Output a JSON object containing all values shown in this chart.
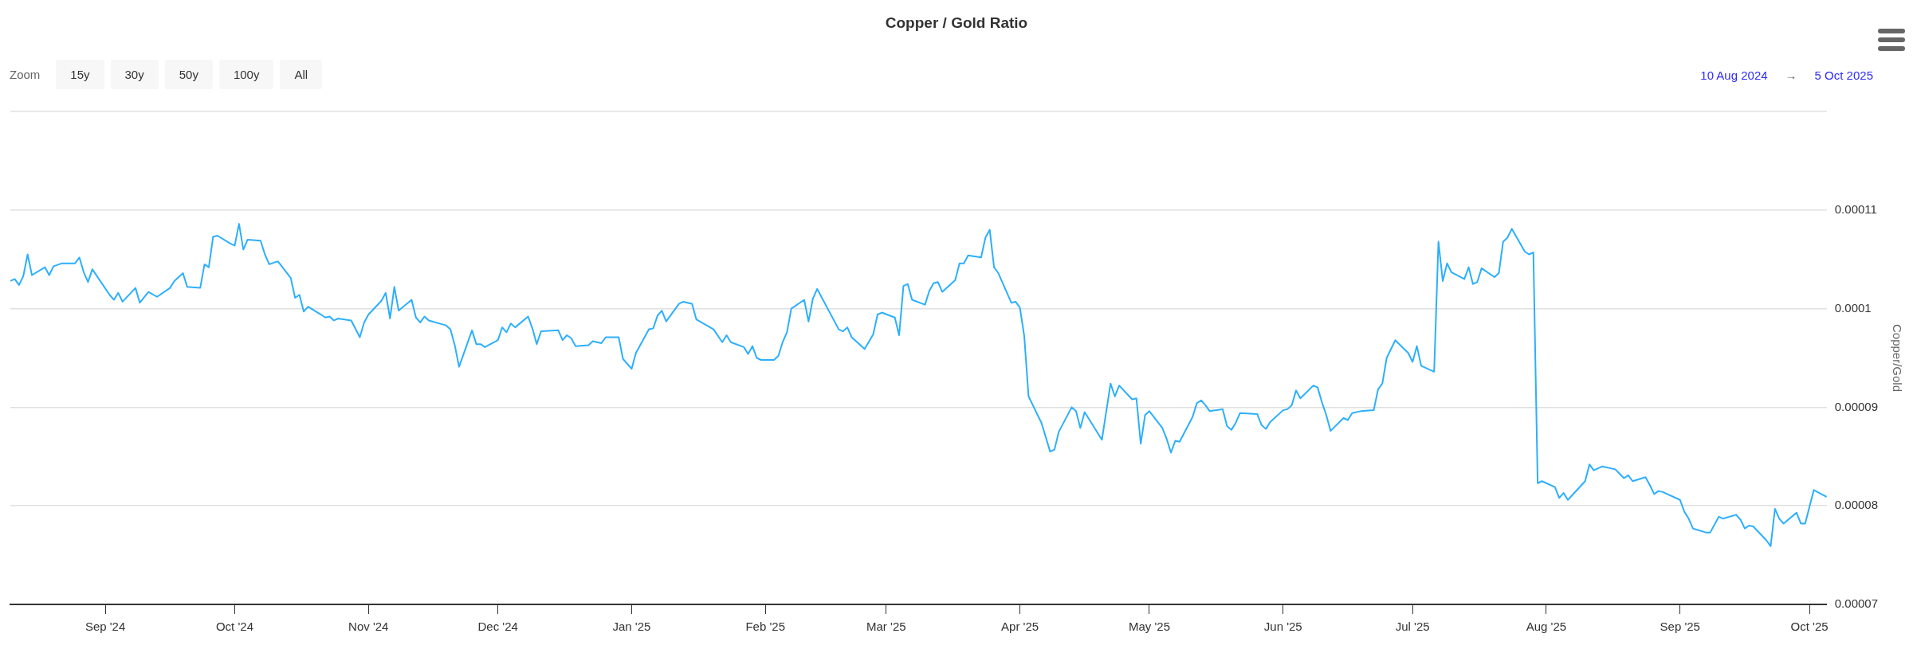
{
  "chart_data": {
    "type": "line",
    "title": "Copper / Gold Ratio",
    "ylabel": "Copper/Gold",
    "annotations": [
      "Zoom",
      "15y",
      "30y",
      "50y",
      "100y",
      "All",
      "10 Aug 2024",
      "→",
      "5 Oct 2025"
    ],
    "xlim": [
      "2024-08-10",
      "2025-10-05"
    ],
    "xticks": [
      {
        "value": "2024-09-01",
        "label": "Sep '24"
      },
      {
        "value": "2024-10-01",
        "label": "Oct '24"
      },
      {
        "value": "2024-11-01",
        "label": "Nov '24"
      },
      {
        "value": "2024-12-01",
        "label": "Dec '24"
      },
      {
        "value": "2025-01-01",
        "label": "Jan '25"
      },
      {
        "value": "2025-02-01",
        "label": "Feb '25"
      },
      {
        "value": "2025-03-01",
        "label": "Mar '25"
      },
      {
        "value": "2025-04-01",
        "label": "Apr '25"
      },
      {
        "value": "2025-05-01",
        "label": "May '25"
      },
      {
        "value": "2025-06-01",
        "label": "Jun '25"
      },
      {
        "value": "2025-07-01",
        "label": "Jul '25"
      },
      {
        "value": "2025-08-01",
        "label": "Aug '25"
      },
      {
        "value": "2025-09-01",
        "label": "Sep '25"
      },
      {
        "value": "2025-10-01",
        "label": "Oct '25"
      }
    ],
    "ylim": [
      7e-05,
      0.00012
    ],
    "yticks": [
      {
        "value": 7e-05,
        "label": "0.00007"
      },
      {
        "value": 8e-05,
        "label": "0.00008"
      },
      {
        "value": 9e-05,
        "label": "0.00009"
      },
      {
        "value": 0.0001,
        "label": "0.0001"
      },
      {
        "value": 0.00011,
        "label": "0.00011"
      },
      {
        "value": 0.00012,
        "label": null
      }
    ],
    "grid": "y",
    "legend": false,
    "marker": "none",
    "line_style": "solid",
    "series": [
      {
        "color": "#2caffe",
        "x": [
          "2024-08-10",
          "2024-08-11",
          "2024-08-12",
          "2024-08-13",
          "2024-08-14",
          "2024-08-15",
          "2024-08-18",
          "2024-08-19",
          "2024-08-20",
          "2024-08-22",
          "2024-08-25",
          "2024-08-26",
          "2024-08-27",
          "2024-08-28",
          "2024-08-29",
          "2024-09-02",
          "2024-09-03",
          "2024-09-04",
          "2024-09-05",
          "2024-09-08",
          "2024-09-09",
          "2024-09-11",
          "2024-09-13",
          "2024-09-16",
          "2024-09-17",
          "2024-09-19",
          "2024-09-20",
          "2024-09-23",
          "2024-09-24",
          "2024-09-25",
          "2024-09-26",
          "2024-09-27",
          "2024-09-30",
          "2024-10-01",
          "2024-10-02",
          "2024-10-03",
          "2024-10-04",
          "2024-10-07",
          "2024-10-08",
          "2024-10-09",
          "2024-10-11",
          "2024-10-14",
          "2024-10-15",
          "2024-10-16",
          "2024-10-17",
          "2024-10-18",
          "2024-10-21",
          "2024-10-22",
          "2024-10-23",
          "2024-10-24",
          "2024-10-25",
          "2024-10-28",
          "2024-10-30",
          "2024-10-31",
          "2024-11-01",
          "2024-11-04",
          "2024-11-05",
          "2024-11-06",
          "2024-11-07",
          "2024-11-08",
          "2024-11-11",
          "2024-11-12",
          "2024-11-13",
          "2024-11-14",
          "2024-11-15",
          "2024-11-19",
          "2024-11-20",
          "2024-11-21",
          "2024-11-22",
          "2024-11-25",
          "2024-11-26",
          "2024-11-27",
          "2024-11-28",
          "2024-12-01",
          "2024-12-02",
          "2024-12-03",
          "2024-12-04",
          "2024-12-05",
          "2024-12-08",
          "2024-12-09",
          "2024-12-10",
          "2024-12-11",
          "2024-12-15",
          "2024-12-16",
          "2024-12-17",
          "2024-12-18",
          "2024-12-19",
          "2024-12-22",
          "2024-12-23",
          "2024-12-25",
          "2024-12-26",
          "2024-12-29",
          "2024-12-30",
          "2025-01-01",
          "2025-01-02",
          "2025-01-05",
          "2025-01-06",
          "2025-01-07",
          "2025-01-08",
          "2025-01-09",
          "2025-01-12",
          "2025-01-13",
          "2025-01-15",
          "2025-01-16",
          "2025-01-20",
          "2025-01-22",
          "2025-01-23",
          "2025-01-24",
          "2025-01-27",
          "2025-01-28",
          "2025-01-29",
          "2025-01-30",
          "2025-01-31",
          "2025-02-03",
          "2025-02-04",
          "2025-02-05",
          "2025-02-06",
          "2025-02-07",
          "2025-02-10",
          "2025-02-11",
          "2025-02-12",
          "2025-02-13",
          "2025-02-18",
          "2025-02-19",
          "2025-02-20",
          "2025-02-21",
          "2025-02-24",
          "2025-02-26",
          "2025-02-27",
          "2025-02-28",
          "2025-03-03",
          "2025-03-04",
          "2025-03-05",
          "2025-03-06",
          "2025-03-07",
          "2025-03-10",
          "2025-03-11",
          "2025-03-12",
          "2025-03-13",
          "2025-03-14",
          "2025-03-17",
          "2025-03-18",
          "2025-03-19",
          "2025-03-20",
          "2025-03-23",
          "2025-03-24",
          "2025-03-25",
          "2025-03-26",
          "2025-03-27",
          "2025-03-30",
          "2025-03-31",
          "2025-04-01",
          "2025-04-02",
          "2025-04-03",
          "2025-04-06",
          "2025-04-08",
          "2025-04-09",
          "2025-04-10",
          "2025-04-13",
          "2025-04-14",
          "2025-04-15",
          "2025-04-16",
          "2025-04-20",
          "2025-04-22",
          "2025-04-23",
          "2025-04-24",
          "2025-04-27",
          "2025-04-28",
          "2025-04-29",
          "2025-04-30",
          "2025-05-01",
          "2025-05-04",
          "2025-05-05",
          "2025-05-06",
          "2025-05-07",
          "2025-05-08",
          "2025-05-11",
          "2025-05-12",
          "2025-05-13",
          "2025-05-14",
          "2025-05-15",
          "2025-05-18",
          "2025-05-19",
          "2025-05-20",
          "2025-05-21",
          "2025-05-22",
          "2025-05-26",
          "2025-05-27",
          "2025-05-28",
          "2025-05-29",
          "2025-06-01",
          "2025-06-02",
          "2025-06-03",
          "2025-06-04",
          "2025-06-05",
          "2025-06-08",
          "2025-06-09",
          "2025-06-10",
          "2025-06-11",
          "2025-06-12",
          "2025-06-15",
          "2025-06-16",
          "2025-06-17",
          "2025-06-19",
          "2025-06-22",
          "2025-06-23",
          "2025-06-24",
          "2025-06-25",
          "2025-06-27",
          "2025-06-30",
          "2025-07-01",
          "2025-07-02",
          "2025-07-03",
          "2025-07-06",
          "2025-07-07",
          "2025-07-08",
          "2025-07-09",
          "2025-07-10",
          "2025-07-13",
          "2025-07-14",
          "2025-07-15",
          "2025-07-16",
          "2025-07-17",
          "2025-07-20",
          "2025-07-21",
          "2025-07-22",
          "2025-07-23",
          "2025-07-24",
          "2025-07-27",
          "2025-07-28",
          "2025-07-29",
          "2025-07-30",
          "2025-07-31",
          "2025-08-03",
          "2025-08-04",
          "2025-08-05",
          "2025-08-06",
          "2025-08-10",
          "2025-08-11",
          "2025-08-12",
          "2025-08-14",
          "2025-08-17",
          "2025-08-19",
          "2025-08-20",
          "2025-08-21",
          "2025-08-24",
          "2025-08-25",
          "2025-08-26",
          "2025-08-27",
          "2025-08-28",
          "2025-09-01",
          "2025-09-02",
          "2025-09-03",
          "2025-09-04",
          "2025-09-07",
          "2025-09-08",
          "2025-09-10",
          "2025-09-11",
          "2025-09-14",
          "2025-09-15",
          "2025-09-16",
          "2025-09-17",
          "2025-09-18",
          "2025-09-21",
          "2025-09-22",
          "2025-09-23",
          "2025-09-24",
          "2025-09-25",
          "2025-09-28",
          "2025-09-29",
          "2025-09-30",
          "2025-10-02",
          "2025-10-05"
        ],
        "values": [
          0.0001028,
          0.000103,
          0.0001024,
          0.0001033,
          0.0001055,
          0.0001034,
          0.0001042,
          0.0001034,
          0.0001043,
          0.0001046,
          0.0001046,
          0.0001052,
          0.0001037,
          0.0001027,
          0.000104,
          0.0001014,
          0.0001009,
          0.0001016,
          0.0001007,
          0.0001021,
          0.0001006,
          0.0001017,
          0.0001012,
          0.0001021,
          0.0001028,
          0.0001036,
          0.0001022,
          0.0001021,
          0.0001045,
          0.0001042,
          0.0001073,
          0.0001074,
          0.0001066,
          0.0001064,
          0.0001086,
          0.000106,
          0.000107,
          0.0001069,
          0.0001055,
          0.0001045,
          0.0001048,
          0.0001031,
          0.0001011,
          0.0001014,
          9.97e-05,
          0.0001002,
          9.94e-05,
          9.91e-05,
          9.92e-05,
          9.88e-05,
          9.9e-05,
          9.88e-05,
          9.71e-05,
          9.86e-05,
          9.94e-05,
          0.0001008,
          0.0001016,
          9.9e-05,
          0.0001022,
          9.98e-05,
          0.0001009,
          9.91e-05,
          9.86e-05,
          9.92e-05,
          9.88e-05,
          9.83e-05,
          9.79e-05,
          9.63e-05,
          9.41e-05,
          9.78e-05,
          9.64e-05,
          9.64e-05,
          9.61e-05,
          9.68e-05,
          9.81e-05,
          9.76e-05,
          9.85e-05,
          9.81e-05,
          9.92e-05,
          9.8e-05,
          9.64e-05,
          9.77e-05,
          9.78e-05,
          9.68e-05,
          9.73e-05,
          9.7e-05,
          9.62e-05,
          9.63e-05,
          9.67e-05,
          9.65e-05,
          9.71e-05,
          9.71e-05,
          9.49e-05,
          9.39e-05,
          9.55e-05,
          9.79e-05,
          9.8e-05,
          9.93e-05,
          9.98e-05,
          9.87e-05,
          0.0001005,
          0.0001007,
          0.0001005,
          9.89e-05,
          9.79e-05,
          9.66e-05,
          9.73e-05,
          9.66e-05,
          9.61e-05,
          9.54e-05,
          9.62e-05,
          9.5e-05,
          9.48e-05,
          9.48e-05,
          9.52e-05,
          9.66e-05,
          9.76e-05,
          0.0001,
          0.0001009,
          9.87e-05,
          0.000101,
          0.000102,
          9.79e-05,
          9.77e-05,
          9.81e-05,
          9.71e-05,
          9.59e-05,
          9.74e-05,
          9.94e-05,
          9.96e-05,
          9.91e-05,
          9.73e-05,
          0.0001023,
          0.0001025,
          0.0001009,
          0.0001004,
          0.0001018,
          0.0001026,
          0.0001027,
          0.0001017,
          0.0001029,
          0.0001046,
          0.0001046,
          0.0001054,
          0.0001052,
          0.0001072,
          0.000108,
          0.0001042,
          0.0001036,
          0.0001006,
          0.0001007,
          0.0001001,
          9.72e-05,
          9.11e-05,
          8.84e-05,
          8.55e-05,
          8.57e-05,
          8.75e-05,
          9e-05,
          8.96e-05,
          8.79e-05,
          8.95e-05,
          8.67e-05,
          9.24e-05,
          9.11e-05,
          9.22e-05,
          9.08e-05,
          9.09e-05,
          8.63e-05,
          8.92e-05,
          8.96e-05,
          8.79e-05,
          8.68e-05,
          8.54e-05,
          8.66e-05,
          8.65e-05,
          8.9e-05,
          9.04e-05,
          9.07e-05,
          9.02e-05,
          8.96e-05,
          8.98e-05,
          8.81e-05,
          8.77e-05,
          8.84e-05,
          8.94e-05,
          8.93e-05,
          8.82e-05,
          8.78e-05,
          8.85e-05,
          8.97e-05,
          8.98e-05,
          9.02e-05,
          9.17e-05,
          9.09e-05,
          9.22e-05,
          9.2e-05,
          9.05e-05,
          8.92e-05,
          8.76e-05,
          8.89e-05,
          8.87e-05,
          8.94e-05,
          8.96e-05,
          8.97e-05,
          9.18e-05,
          9.24e-05,
          9.5e-05,
          9.68e-05,
          9.55e-05,
          9.46e-05,
          9.62e-05,
          9.42e-05,
          9.36e-05,
          0.0001068,
          0.0001028,
          0.0001046,
          0.0001037,
          0.000103,
          0.0001042,
          0.0001025,
          0.0001027,
          0.0001041,
          0.0001032,
          0.0001036,
          0.0001068,
          0.0001072,
          0.0001081,
          0.0001058,
          0.0001055,
          0.0001057,
          8.23e-05,
          8.25e-05,
          8.19e-05,
          8.08e-05,
          8.13e-05,
          8.06e-05,
          8.25e-05,
          8.42e-05,
          8.36e-05,
          8.4e-05,
          8.37e-05,
          8.28e-05,
          8.31e-05,
          8.25e-05,
          8.29e-05,
          8.21e-05,
          8.12e-05,
          8.15e-05,
          8.14e-05,
          8.06e-05,
          7.94e-05,
          7.87e-05,
          7.77e-05,
          7.73e-05,
          7.73e-05,
          7.89e-05,
          7.87e-05,
          7.91e-05,
          7.86e-05,
          7.77e-05,
          7.8e-05,
          7.79e-05,
          7.65e-05,
          7.59e-05,
          7.97e-05,
          7.87e-05,
          7.82e-05,
          7.93e-05,
          7.82e-05,
          7.82e-05,
          8.16e-05,
          8.09e-05
        ]
      }
    ]
  }
}
